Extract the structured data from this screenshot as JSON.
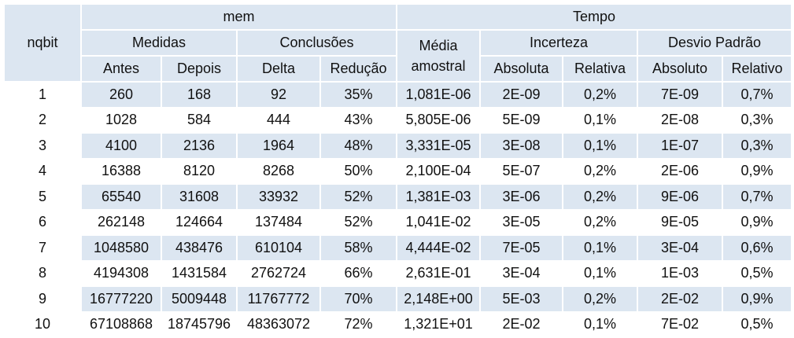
{
  "header": {
    "nqbit": "nqbit",
    "mem": "mem",
    "tempo": "Tempo",
    "medidas": "Medidas",
    "conclusoes": "Conclusões",
    "media_amostral_1": "Média",
    "media_amostral_2": "amostral",
    "incerteza": "Incerteza",
    "desvio_padrao": "Desvio Padrão",
    "antes": "Antes",
    "depois": "Depois",
    "delta": "Delta",
    "reducao": "Redução",
    "absoluta": "Absoluta",
    "relativa": "Relativa",
    "absoluto": "Absoluto",
    "relativo": "Relativo"
  },
  "rows": [
    [
      "1",
      "260",
      "168",
      "92",
      "35%",
      "1,081E-06",
      "2E-09",
      "0,2%",
      "7E-09",
      "0,7%"
    ],
    [
      "2",
      "1028",
      "584",
      "444",
      "43%",
      "5,805E-06",
      "5E-09",
      "0,1%",
      "2E-08",
      "0,3%"
    ],
    [
      "3",
      "4100",
      "2136",
      "1964",
      "48%",
      "3,331E-05",
      "3E-08",
      "0,1%",
      "1E-07",
      "0,3%"
    ],
    [
      "4",
      "16388",
      "8120",
      "8268",
      "50%",
      "2,100E-04",
      "5E-07",
      "0,2%",
      "2E-06",
      "0,9%"
    ],
    [
      "5",
      "65540",
      "31608",
      "33932",
      "52%",
      "1,381E-03",
      "3E-06",
      "0,2%",
      "9E-06",
      "0,7%"
    ],
    [
      "6",
      "262148",
      "124664",
      "137484",
      "52%",
      "1,041E-02",
      "3E-05",
      "0,2%",
      "9E-05",
      "0,9%"
    ],
    [
      "7",
      "1048580",
      "438476",
      "610104",
      "58%",
      "4,444E-02",
      "7E-05",
      "0,1%",
      "3E-04",
      "0,6%"
    ],
    [
      "8",
      "4194308",
      "1431584",
      "2762724",
      "66%",
      "2,631E-01",
      "3E-04",
      "0,1%",
      "1E-03",
      "0,5%"
    ],
    [
      "9",
      "16777220",
      "5009448",
      "11767772",
      "70%",
      "2,148E+00",
      "5E-03",
      "0,2%",
      "2E-02",
      "0,9%"
    ],
    [
      "10",
      "67108868",
      "18745796",
      "48363072",
      "72%",
      "1,321E+01",
      "2E-02",
      "0,1%",
      "7E-02",
      "0,5%"
    ]
  ]
}
